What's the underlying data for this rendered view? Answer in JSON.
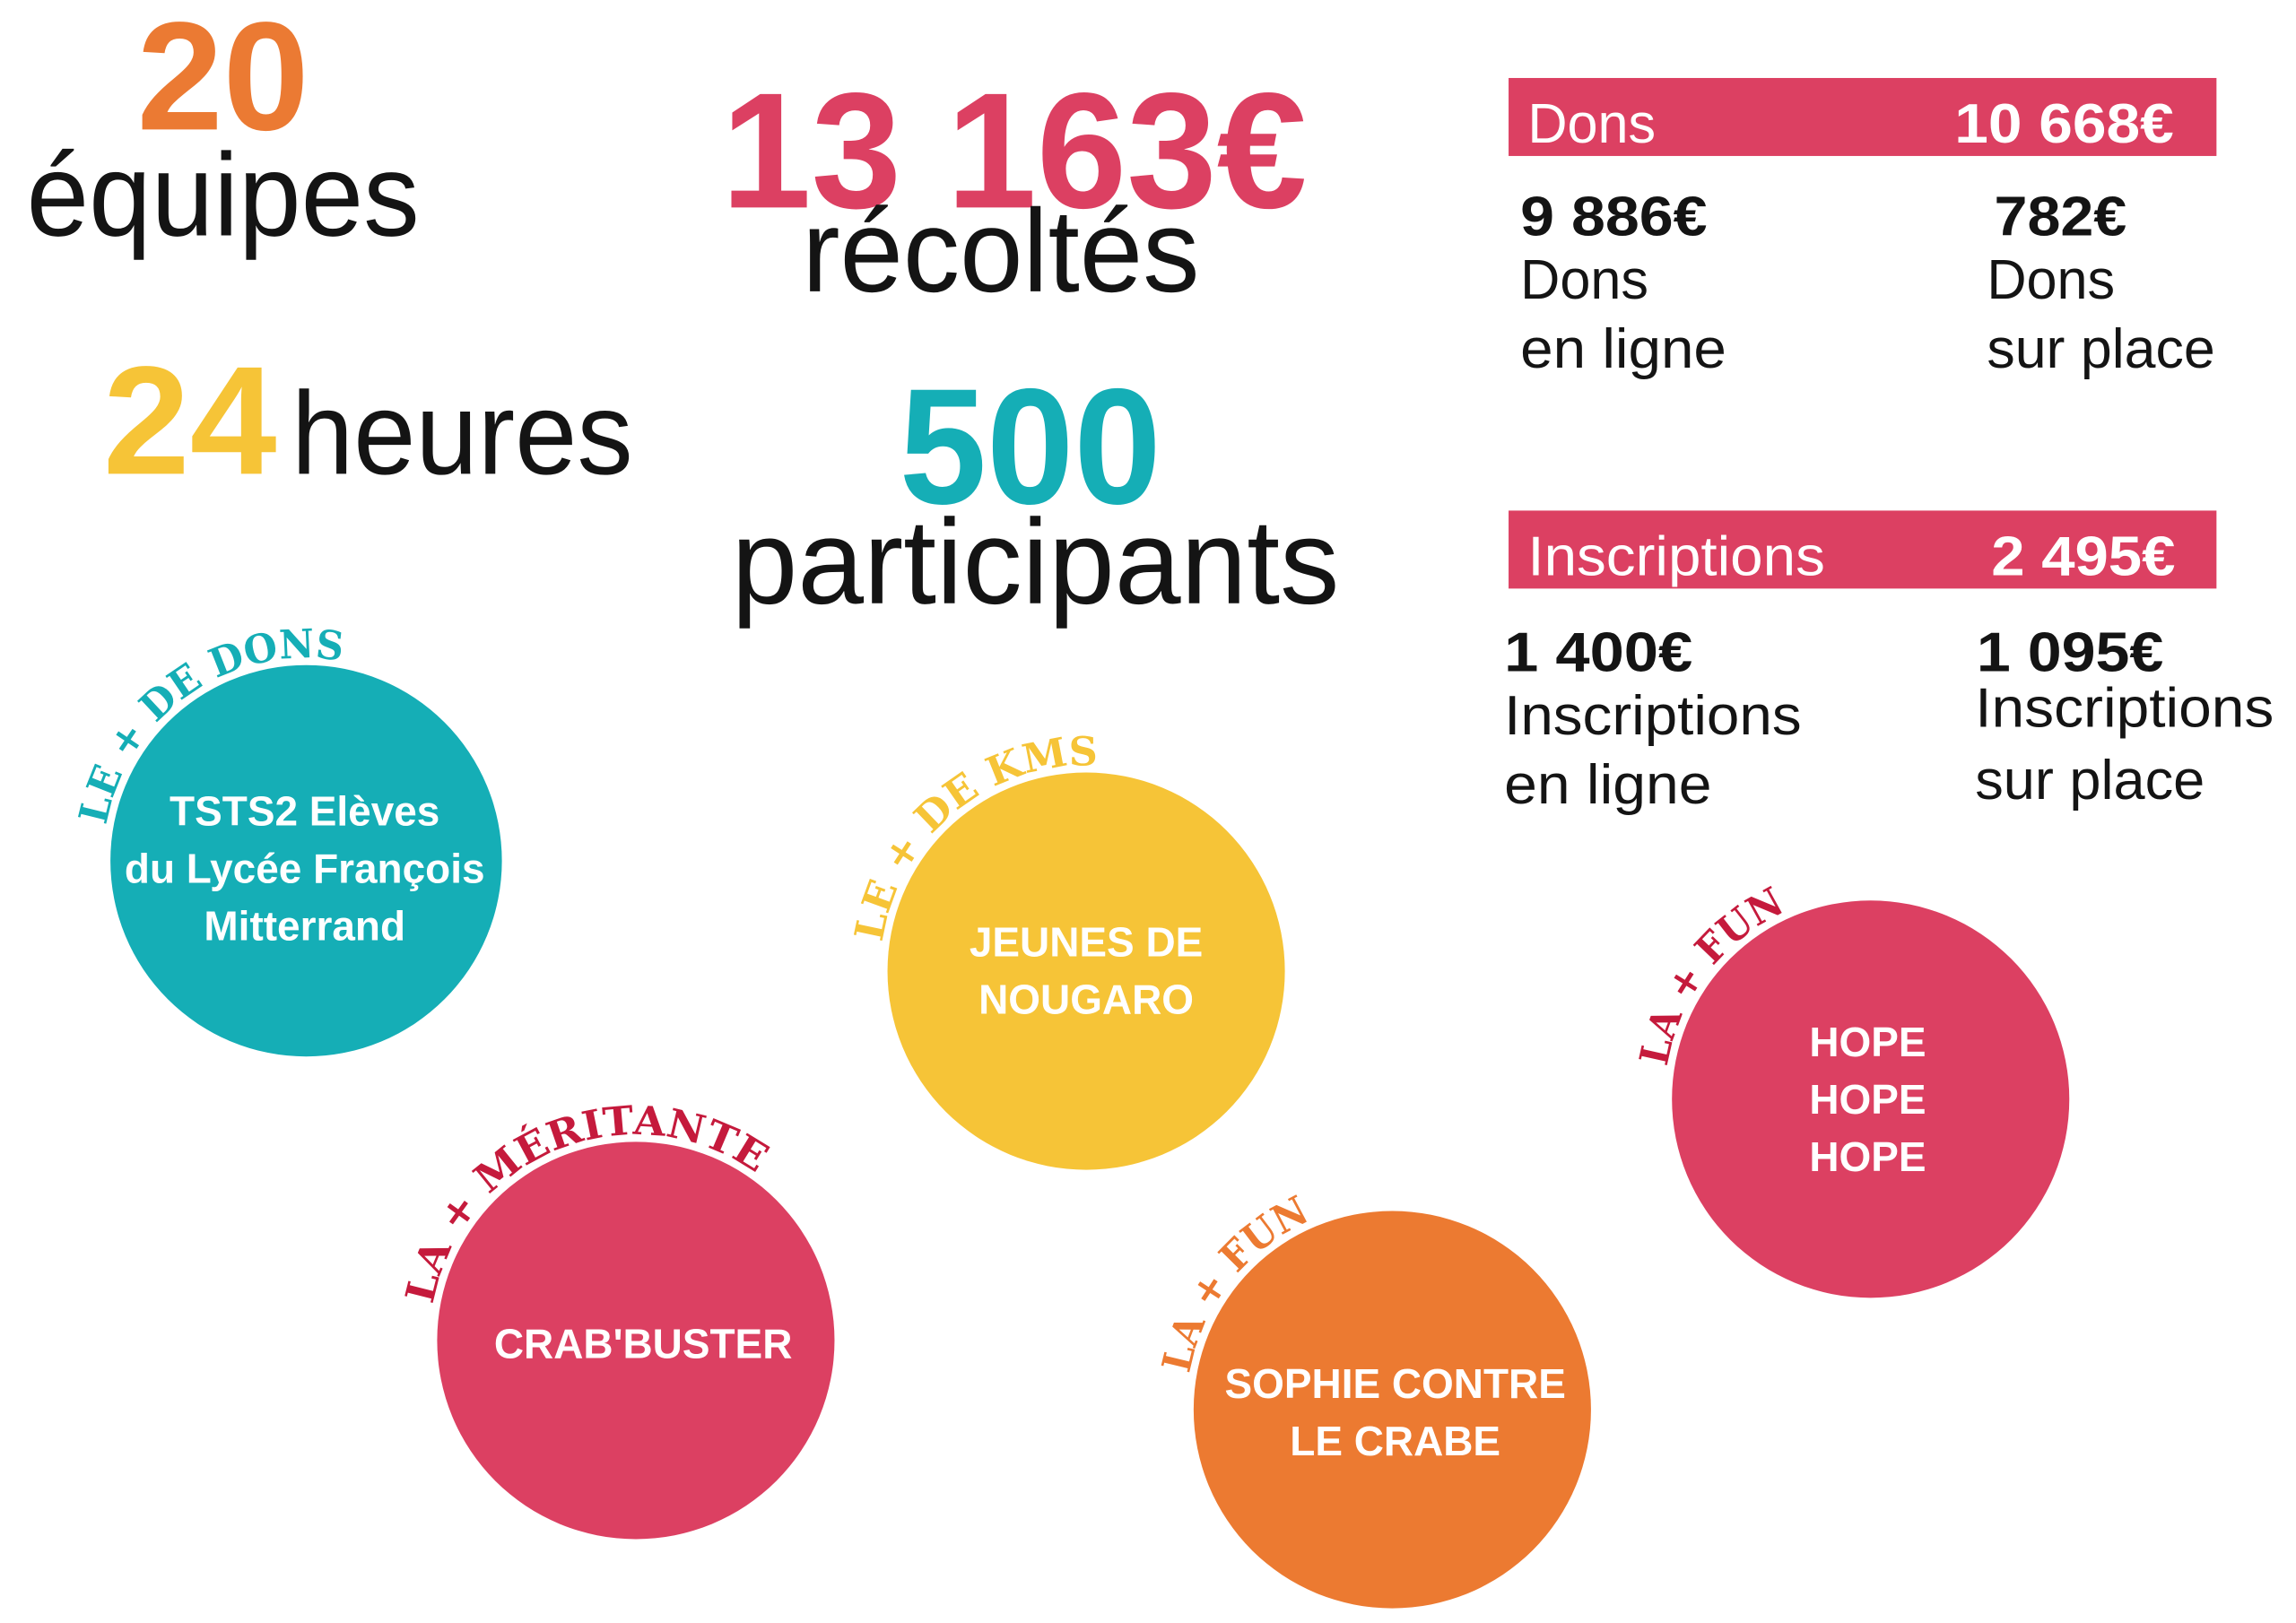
{
  "stats": {
    "teams": {
      "value": "20",
      "label": "équipes",
      "color": "#EB7A33"
    },
    "hours": {
      "value": "24",
      "label": "heures",
      "color": "#F6C437"
    },
    "raised": {
      "value": "13 163€",
      "label": "récoltés",
      "color": "#DC4062"
    },
    "participants": {
      "value": "500",
      "label": "participants",
      "color": "#15AEB6"
    }
  },
  "breakdown": {
    "bar_color": "#DC4062",
    "donations": {
      "title": "Dons",
      "total": "10 668€",
      "online": {
        "amount": "9 886€",
        "line1": "Dons",
        "line2": "en ligne"
      },
      "onsite": {
        "amount": "782€",
        "line1": "Dons",
        "line2": "sur place"
      }
    },
    "registrations": {
      "title": "Inscriptions",
      "total": "2 495€",
      "online": {
        "amount": "1 400€",
        "line1": "Inscriptions",
        "line2": "en ligne"
      },
      "onsite": {
        "amount": "1 095€",
        "line1": "Inscriptions",
        "line2": "sur place"
      }
    }
  },
  "awards": [
    {
      "title": "LE + DE DONS",
      "team": [
        "TSTS2 Elèves",
        "du Lycée François",
        "Mitterrand"
      ],
      "circle_color": "#15AEB6",
      "title_color": "#15AEB6"
    },
    {
      "title": "LE + DE KMS",
      "team": [
        "JEUNES DE",
        "NOUGARO"
      ],
      "circle_color": "#F6C437",
      "title_color": "#F6C437"
    },
    {
      "title": "LA + MÉRITANTE",
      "team": [
        "CRAB'BUSTER"
      ],
      "circle_color": "#DC4062",
      "title_color": "#C51A3C"
    },
    {
      "title": "LA + FUN",
      "team": [
        "SOPHIE CONTRE",
        "LE CRABE"
      ],
      "circle_color": "#EC7A31",
      "title_color": "#EC7A31"
    },
    {
      "title": "LA + FUN",
      "team": [
        "HOPE",
        "HOPE",
        "HOPE"
      ],
      "circle_color": "#DC4062",
      "title_color": "#C51A3C"
    }
  ]
}
